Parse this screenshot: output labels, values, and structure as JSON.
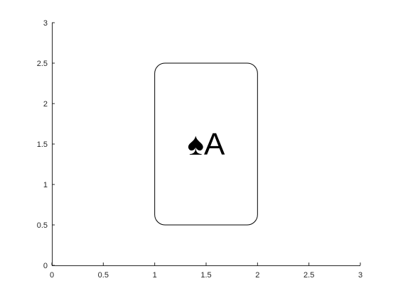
{
  "chart_data": {
    "type": "shape",
    "title": "",
    "xlabel": "",
    "ylabel": "",
    "xlim": [
      0,
      3
    ],
    "ylim": [
      0,
      3
    ],
    "xticks": [
      0,
      0.5,
      1,
      1.5,
      2,
      2.5,
      3
    ],
    "yticks": [
      0,
      0.5,
      1,
      1.5,
      2,
      2.5,
      3
    ],
    "xtick_labels": [
      "0",
      "0.5",
      "1",
      "1.5",
      "2",
      "2.5",
      "3"
    ],
    "ytick_labels": [
      "0",
      "0.5",
      "1",
      "1.5",
      "2",
      "2.5",
      "3"
    ],
    "grid": false,
    "card": {
      "x_range": [
        1,
        2
      ],
      "y_range": [
        0.5,
        2.5
      ],
      "corner_radius": 0.1,
      "edge_color": "#000000",
      "face_color": "#ffffff",
      "label_x": 1.5,
      "label_y": 1.5,
      "suit_symbol": "♠",
      "rank": "A",
      "text_color": "#000000"
    }
  }
}
